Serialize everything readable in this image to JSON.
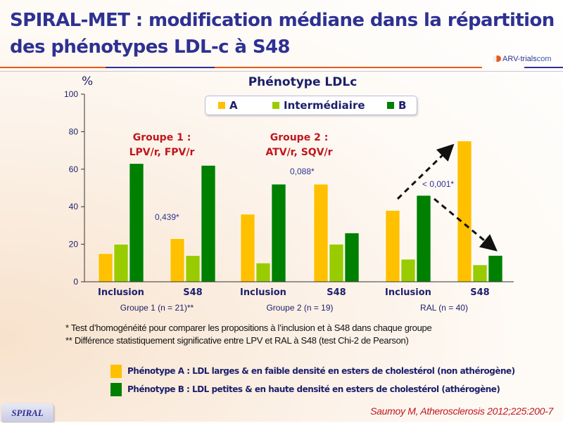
{
  "slide": {
    "title_line1": "SPIRAL-MET : modification médiane dans la répartition",
    "title_line2": "des phénotypes LDL-c à S48",
    "logo": {
      "name": "ARV-trials",
      "suffix": "com"
    },
    "footer_tab": "SPIRAL",
    "reference": "Saumoy M, Atherosclerosis 2012;225:200-7",
    "notes": [
      "* Test d’homogénéité pour comparer les propositions à l’inclusion et à S48 dans chaque groupe",
      "** Différence statistiquement significative entre LPV et RAL à S48 (test Chi-2 de Pearson)"
    ],
    "definitions": [
      {
        "label": "Phénotype A : LDL larges & en faible densité en esters de cholestérol (non athérogène)",
        "color": "#ffc000"
      },
      {
        "label": "Phénotype B : LDL petites & en haute densité en esters de cholestérol (athérogène)",
        "color": "#008000"
      }
    ]
  },
  "chart_data": {
    "type": "bar",
    "title": "Phénotype LDLc",
    "ylabel": "%",
    "xlabel": "",
    "ylim": [
      0,
      100
    ],
    "yticks": [
      0,
      20,
      40,
      60,
      80,
      100
    ],
    "grid": false,
    "legend_position": "top-center",
    "categories": [
      "Inclusion",
      "S48",
      "Inclusion",
      "S48",
      "Inclusion",
      "S48"
    ],
    "groups": [
      {
        "label": "Groupe 1 (n = 21)**",
        "annotation": [
          "Groupe 1 :",
          "LPV/r, FPV/r"
        ],
        "p_value": "0,439*"
      },
      {
        "label": "Groupe 2 (n = 19)",
        "annotation": [
          "Groupe 2 :",
          "ATV/r, SQV/r"
        ],
        "p_value": "0,088*"
      },
      {
        "label": "RAL (n = 40)",
        "annotation": [],
        "p_value": "< 0,001*"
      }
    ],
    "series": [
      {
        "name": "A",
        "color": "#ffc000",
        "values": [
          15,
          23,
          36,
          52,
          38,
          75
        ]
      },
      {
        "name": "Intermédiaire",
        "color": "#99cc00",
        "values": [
          20,
          14,
          10,
          20,
          12,
          9
        ]
      },
      {
        "name": "B",
        "color": "#008000",
        "values": [
          63,
          62,
          52,
          26,
          46,
          14
        ]
      }
    ]
  }
}
